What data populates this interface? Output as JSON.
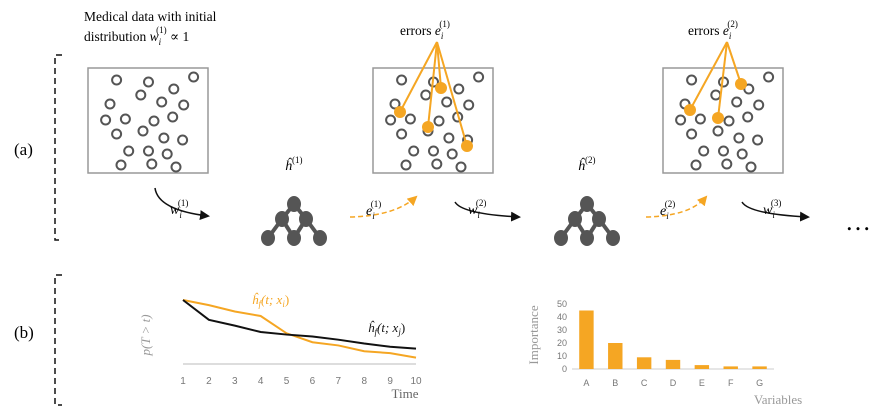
{
  "panels": {
    "a": "(a)",
    "b": "(b)"
  },
  "top_text": {
    "medical_line1": "Medical data with initial",
    "medical_line2_prefix": "distribution ",
    "medical_w": "w",
    "medical_sub": "i",
    "medical_sup": "(1)",
    "medical_suffix": " ∝ 1",
    "errors_word": "errors ",
    "errors_e": "e",
    "errors_sub": "i",
    "errors1_sup": "(1)",
    "errors2_sup": "(2)"
  },
  "models": [
    {
      "hat": "ĥ",
      "sup": "(1)"
    },
    {
      "hat": "ĥ",
      "sup": "(2)"
    }
  ],
  "arrows": [
    {
      "sym": "w",
      "sub": "i",
      "sup": "(1)",
      "color": "black"
    },
    {
      "sym": "e",
      "sub": "i",
      "sup": "(1)",
      "color": "orange"
    },
    {
      "sym": "w",
      "sub": "i",
      "sup": "(2)",
      "color": "black"
    },
    {
      "sym": "e",
      "sub": "i",
      "sup": "(2)",
      "color": "orange"
    },
    {
      "sym": "w",
      "sub": "i",
      "sup": "(3)",
      "color": "black"
    }
  ],
  "ellipsis": "…",
  "colors": {
    "orange": "#F5A623",
    "dark": "#555555",
    "black": "#111111",
    "gray": "#999999"
  },
  "chart_data": [
    {
      "type": "line",
      "ylabel": "p(T > t)",
      "xlabel": "Time",
      "x": [
        1,
        2,
        3,
        4,
        5,
        6,
        7,
        8,
        9,
        10
      ],
      "xlim": [
        1,
        10
      ],
      "ylim": [
        0,
        1
      ],
      "series": [
        {
          "name": "ĥf(t; xi)",
          "color": "#F5A623",
          "values": [
            1.0,
            0.92,
            0.82,
            0.75,
            0.48,
            0.34,
            0.29,
            0.2,
            0.17,
            0.1
          ]
        },
        {
          "name": "ĥf(t; xj)",
          "color": "#111111",
          "values": [
            1.0,
            0.69,
            0.6,
            0.5,
            0.46,
            0.43,
            0.38,
            0.32,
            0.27,
            0.24
          ]
        }
      ],
      "series_label_parts": [
        {
          "h": "ĥ",
          "f": "f",
          "args": "(t; x",
          "sub": "i",
          "close": ")"
        },
        {
          "h": "ĥ",
          "f": "f",
          "args": "(t; x",
          "sub": "j",
          "close": ")"
        }
      ]
    },
    {
      "type": "bar",
      "ylabel": "Importance",
      "xlabel": "Variables",
      "categories": [
        "A",
        "B",
        "C",
        "D",
        "E",
        "F",
        "G"
      ],
      "values": [
        45,
        20,
        9,
        7,
        3,
        2,
        2
      ],
      "ylim": [
        0,
        50
      ],
      "yticks": [
        0,
        10,
        20,
        30,
        40,
        50
      ],
      "color": "#F5A623"
    }
  ]
}
